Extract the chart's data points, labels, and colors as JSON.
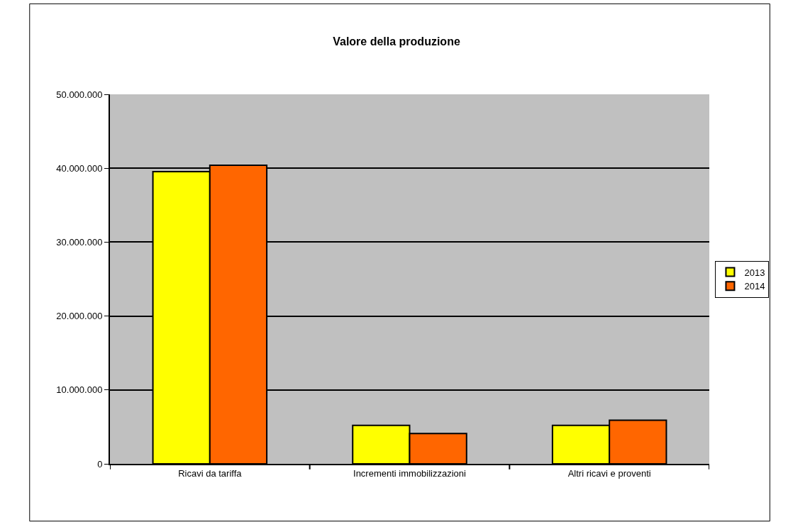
{
  "chart_data": {
    "type": "bar",
    "title": "Valore della produzione",
    "categories": [
      "Ricavi da tariffa",
      "Incrementi immobilizzazioni",
      "Altri ricavi e proventi"
    ],
    "series": [
      {
        "name": "2013",
        "color": "#ffff00",
        "values": [
          39550000,
          5200000,
          5200000
        ]
      },
      {
        "name": "2014",
        "color": "#ff6600",
        "values": [
          40400000,
          4100000,
          5900000
        ]
      }
    ],
    "ylim": [
      0,
      50000000
    ],
    "yticks": [
      {
        "value": 0,
        "label": "0"
      },
      {
        "value": 10000000,
        "label": "10.000.000"
      },
      {
        "value": 20000000,
        "label": "20.000.000"
      },
      {
        "value": 30000000,
        "label": "30.000.000"
      },
      {
        "value": 40000000,
        "label": "40.000.000"
      },
      {
        "value": 50000000,
        "label": "50.000.000"
      }
    ],
    "grid": "y",
    "legend": "right"
  }
}
